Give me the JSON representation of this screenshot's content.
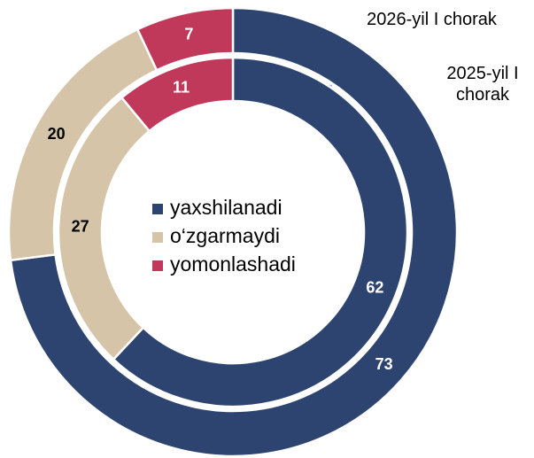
{
  "chart_data": {
    "type": "donut",
    "categories": [
      "yaxshilanadi",
      "o‘zgarmaydi",
      "yomonlashadi"
    ],
    "series": [
      {
        "name": "2026-yil I chorak",
        "values": [
          73,
          20,
          7
        ]
      },
      {
        "name": "2025-yil I chorak",
        "values": [
          62,
          27,
          11
        ]
      }
    ],
    "colors": [
      "#2e4470",
      "#d5c4a8",
      "#c0395a"
    ],
    "label_colors": [
      "#ffffff",
      "#000000",
      "#ffffff"
    ],
    "legend": "center"
  }
}
